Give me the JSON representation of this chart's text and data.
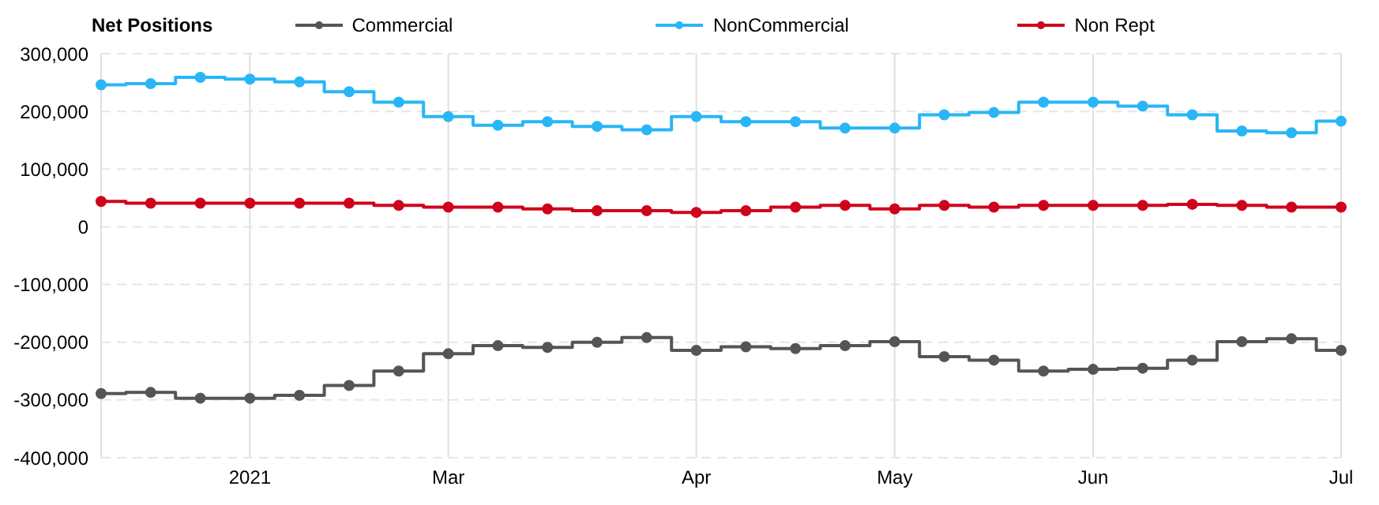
{
  "chart_data": {
    "type": "step",
    "title": "Net Positions",
    "categories": [
      null,
      null,
      null,
      "2021",
      null,
      null,
      null,
      "Mar",
      null,
      null,
      null,
      null,
      "Apr",
      null,
      null,
      null,
      "May",
      null,
      null,
      null,
      "Jun",
      null,
      null,
      null,
      null,
      "Jul"
    ],
    "series": [
      {
        "name": "Commercial",
        "color": "#555555",
        "values": [
          -289000,
          -287000,
          -297000,
          -297000,
          -292000,
          -275000,
          -250000,
          -220000,
          -206000,
          -209000,
          -200000,
          -192000,
          -214000,
          -208000,
          -211000,
          -206000,
          -199000,
          -225000,
          -231000,
          -250000,
          -247000,
          -245000,
          -231000,
          -199000,
          -194000,
          -214000
        ]
      },
      {
        "name": "NonCommercial",
        "color": "#29b6f6",
        "values": [
          246000,
          248000,
          259000,
          256000,
          251000,
          234000,
          216000,
          191000,
          176000,
          182000,
          174000,
          168000,
          191000,
          182000,
          182000,
          171000,
          171000,
          194000,
          198000,
          216000,
          216000,
          209000,
          194000,
          166000,
          163000,
          183000
        ]
      },
      {
        "name": "Non Rept",
        "color": "#d0021b",
        "values": [
          44000,
          41000,
          41000,
          41000,
          41000,
          41000,
          37000,
          34000,
          34000,
          31000,
          28000,
          28000,
          25000,
          28000,
          34000,
          37000,
          31000,
          37000,
          34000,
          37000,
          37000,
          37000,
          39000,
          37000,
          34000,
          34000
        ]
      }
    ],
    "ylim": [
      -400000,
      300000
    ],
    "yticks": [
      {
        "value": -400000,
        "label": "-400,000"
      },
      {
        "value": -300000,
        "label": "-300,000"
      },
      {
        "value": -200000,
        "label": "-200,000"
      },
      {
        "value": -100000,
        "label": "-100,000"
      },
      0,
      {
        "value": 100000,
        "label": "100,000"
      },
      {
        "value": 200000,
        "label": "200,000"
      },
      {
        "value": 300000,
        "label": "300,000"
      }
    ],
    "grid": true,
    "legend": "top",
    "marker": "circle",
    "line_style": "solid"
  }
}
